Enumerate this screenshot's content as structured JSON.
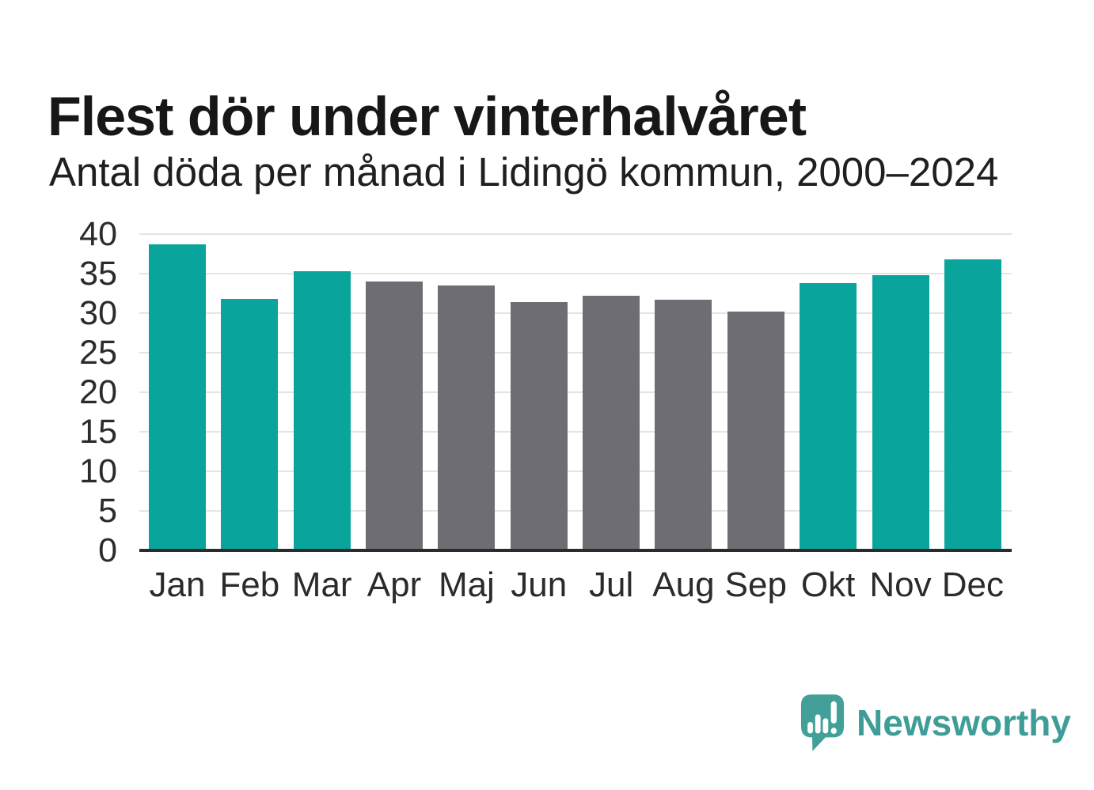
{
  "header": {
    "title": "Flest dör under vinterhalvåret",
    "subtitle": "Antal döda per månad i Lidingö kommun, 2000–2024"
  },
  "chart_data": {
    "type": "bar",
    "title": "Flest dör under vinterhalvåret",
    "subtitle": "Antal döda per månad i Lidingö kommun, 2000–2024",
    "categories": [
      "Jan",
      "Feb",
      "Mar",
      "Apr",
      "Maj",
      "Jun",
      "Jul",
      "Aug",
      "Sep",
      "Okt",
      "Nov",
      "Dec"
    ],
    "values": [
      38.7,
      31.8,
      35.3,
      34.0,
      33.5,
      31.4,
      32.2,
      31.7,
      30.2,
      33.8,
      34.8,
      36.8
    ],
    "bar_seasons": [
      "winter",
      "winter",
      "winter",
      "summer",
      "summer",
      "summer",
      "summer",
      "summer",
      "summer",
      "winter",
      "winter",
      "winter"
    ],
    "palette": {
      "winter": "#09a49b",
      "summer": "#6e6d73"
    },
    "xlabel": "",
    "ylabel": "",
    "ylim": [
      0,
      40
    ],
    "yticks": [
      0,
      5,
      10,
      15,
      20,
      25,
      30,
      35,
      40
    ],
    "grid": "horizontal gridlines every 5 units",
    "legend": "none",
    "colors_meaning": "teal = winter half-year months (Okt–Mar), gray = summer half-year months (Apr–Sep)"
  },
  "colors": {
    "accent_teal": "#09a49b",
    "neutral_gray": "#6e6d73",
    "axis_line": "#2b2b2b",
    "gridline": "#e4e4e4",
    "logo_teal": "#3e9e97"
  },
  "branding": {
    "logo_text": "Newsworthy"
  }
}
